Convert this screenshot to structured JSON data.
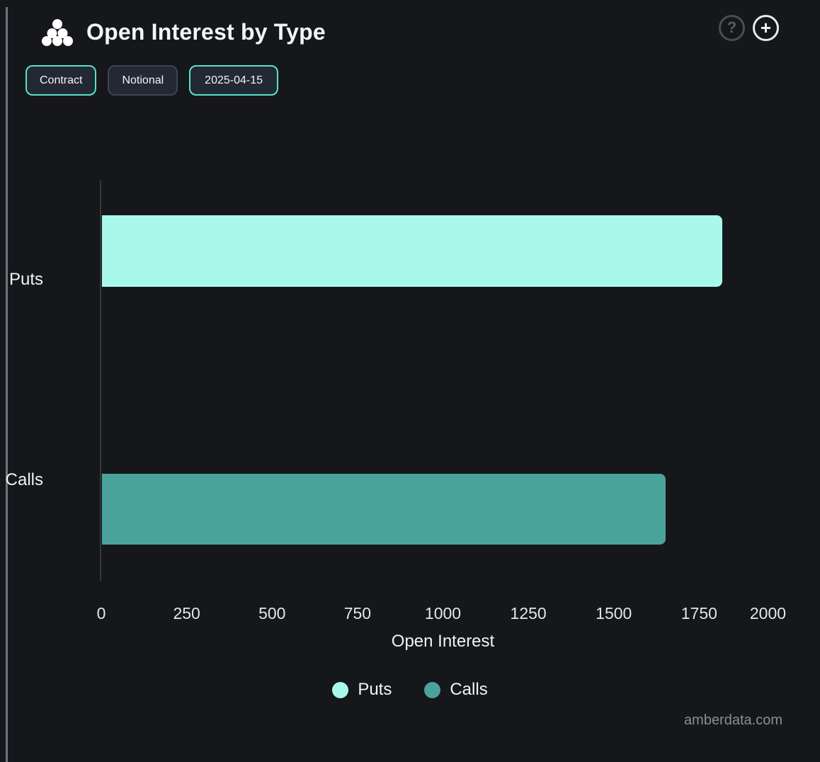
{
  "header": {
    "title": "Open Interest by Type",
    "icons": {
      "help": "?",
      "add": "+"
    }
  },
  "toolbar": {
    "buttons": [
      {
        "label": "Contract",
        "active": true
      },
      {
        "label": "Notional",
        "active": false
      },
      {
        "label": "2025-04-15",
        "active": true
      }
    ]
  },
  "chart_data": {
    "type": "bar",
    "orientation": "horizontal",
    "title": "Open Interest by Type",
    "categories": [
      "Puts",
      "Calls"
    ],
    "values": [
      1815,
      1650
    ],
    "colors": [
      "#a8f9ec",
      "#4aa29b"
    ],
    "xlabel": "Open Interest",
    "ylabel": "",
    "xlim": [
      0,
      2000
    ],
    "xticks": [
      0,
      250,
      500,
      750,
      1000,
      1250,
      1500,
      1750,
      2000
    ],
    "grid": false,
    "legend": [
      {
        "label": "Puts",
        "color": "#a8f9ec"
      },
      {
        "label": "Calls",
        "color": "#4aa29b"
      }
    ],
    "legend_position": "bottom"
  },
  "watermark": "amberdata.com",
  "colors": {
    "background": "#16171a",
    "accent_teal_border": "#56e3cb",
    "puts_bar": "#a8f9ec",
    "calls_bar": "#4aa29b",
    "axis_line": "#34383e",
    "left_border": "#6e7480"
  }
}
